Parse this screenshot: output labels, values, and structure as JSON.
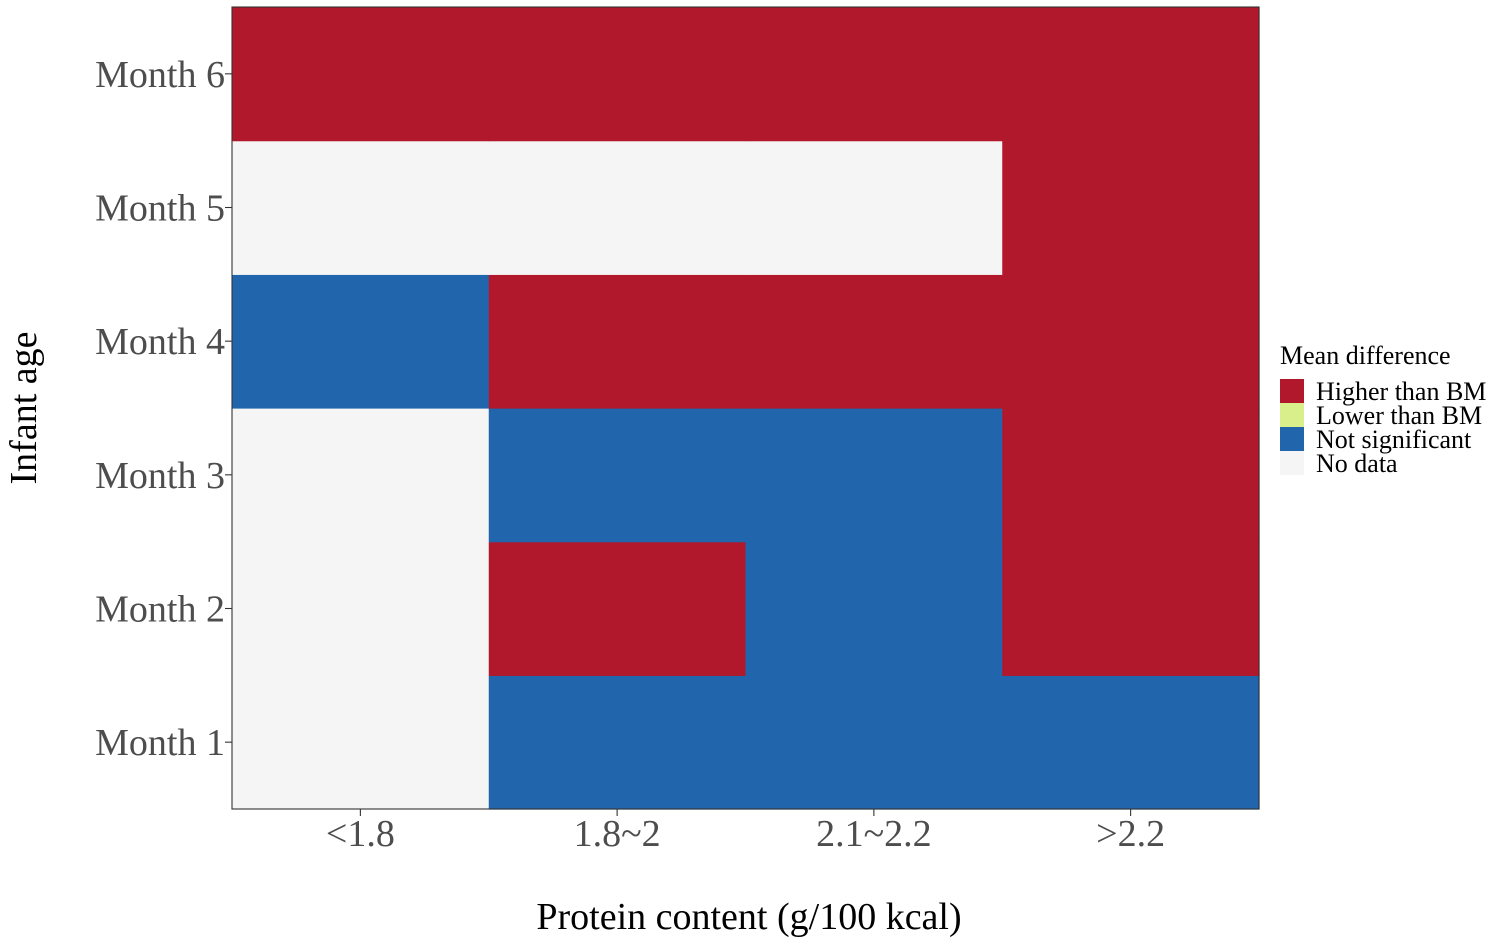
{
  "chart_data": {
    "type": "heatmap",
    "title": "",
    "xlabel": "Protein content (g/100 kcal)",
    "ylabel": "Infant age",
    "x_categories": [
      "<1.8",
      "1.8~2",
      "2.1~2.2",
      ">2.2"
    ],
    "y_categories": [
      "Month 1",
      "Month 2",
      "Month 3",
      "Month 4",
      "Month 5",
      "Month 6"
    ],
    "cells": [
      {
        "x": "<1.8",
        "y": "Month 1",
        "value": "No data"
      },
      {
        "x": "1.8~2",
        "y": "Month 1",
        "value": "Not significant"
      },
      {
        "x": "2.1~2.2",
        "y": "Month 1",
        "value": "Not significant"
      },
      {
        "x": ">2.2",
        "y": "Month 1",
        "value": "Not significant"
      },
      {
        "x": "<1.8",
        "y": "Month 2",
        "value": "No data"
      },
      {
        "x": "1.8~2",
        "y": "Month 2",
        "value": "Higher than BM"
      },
      {
        "x": "2.1~2.2",
        "y": "Month 2",
        "value": "Not significant"
      },
      {
        "x": ">2.2",
        "y": "Month 2",
        "value": "Higher than BM"
      },
      {
        "x": "<1.8",
        "y": "Month 3",
        "value": "No data"
      },
      {
        "x": "1.8~2",
        "y": "Month 3",
        "value": "Not significant"
      },
      {
        "x": "2.1~2.2",
        "y": "Month 3",
        "value": "Not significant"
      },
      {
        "x": ">2.2",
        "y": "Month 3",
        "value": "Higher than BM"
      },
      {
        "x": "<1.8",
        "y": "Month 4",
        "value": "Not significant"
      },
      {
        "x": "1.8~2",
        "y": "Month 4",
        "value": "Higher than BM"
      },
      {
        "x": "2.1~2.2",
        "y": "Month 4",
        "value": "Higher than BM"
      },
      {
        "x": ">2.2",
        "y": "Month 4",
        "value": "Higher than BM"
      },
      {
        "x": "<1.8",
        "y": "Month 5",
        "value": "No data"
      },
      {
        "x": "1.8~2",
        "y": "Month 5",
        "value": "No data"
      },
      {
        "x": "2.1~2.2",
        "y": "Month 5",
        "value": "No data"
      },
      {
        "x": ">2.2",
        "y": "Month 5",
        "value": "Higher than BM"
      },
      {
        "x": "<1.8",
        "y": "Month 6",
        "value": "Higher than BM"
      },
      {
        "x": "1.8~2",
        "y": "Month 6",
        "value": "Higher than BM"
      },
      {
        "x": "2.1~2.2",
        "y": "Month 6",
        "value": "Higher than BM"
      },
      {
        "x": ">2.2",
        "y": "Month 6",
        "value": "Higher than BM"
      }
    ],
    "legend": {
      "title": "Mean difference",
      "placement": "right",
      "items": [
        {
          "label": "Higher than BM",
          "color": "#b2182b"
        },
        {
          "label": "Lower than BM",
          "color": "#d9ef8b"
        },
        {
          "label": "Not significant",
          "color": "#2166ac"
        },
        {
          "label": "No data",
          "color": "#f5f5f5"
        }
      ]
    },
    "grid": false
  }
}
